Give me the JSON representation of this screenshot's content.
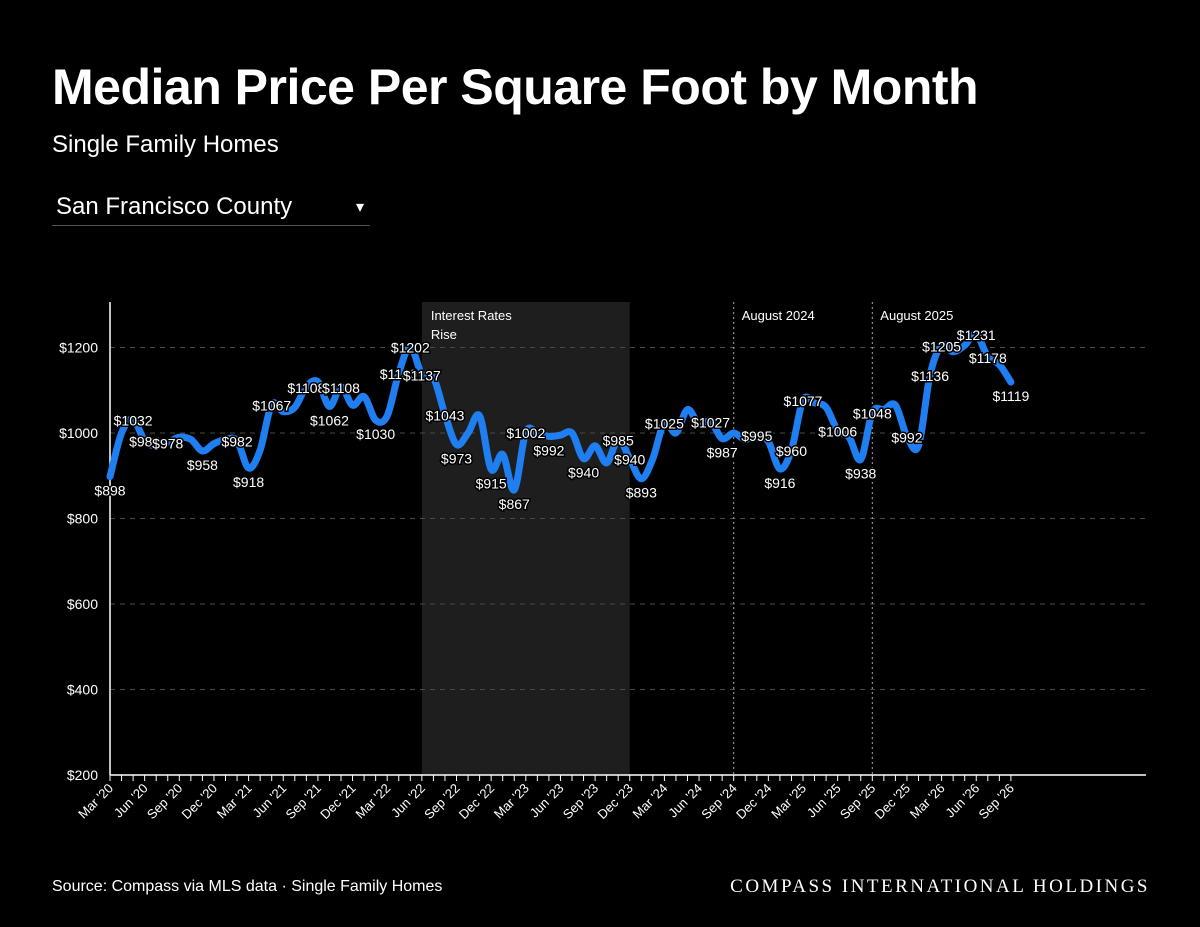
{
  "header": {
    "title": "Median Price Per Square Foot by Month",
    "subtitle": "Single Family Homes"
  },
  "filter": {
    "selected": "San Francisco County",
    "caret_icon": "caret-down-icon"
  },
  "footer": {
    "source": "Source: Compass via MLS data · Single Family Homes",
    "brand": "COMPASS INTERNATIONAL HOLDINGS"
  },
  "colors": {
    "background": "#000000",
    "line": "#1f7ef0",
    "shade": "#1e1e1e",
    "text": "#ffffff"
  },
  "chart_data": {
    "type": "line",
    "title": "Median Price Per Square Foot by Month",
    "ylim": [
      200,
      1300
    ],
    "yticks": [
      200,
      400,
      600,
      800,
      1000,
      1200
    ],
    "ytick_labels": [
      "$200",
      "$400",
      "$600",
      "$800",
      "$1000",
      "$1200"
    ],
    "grid": true,
    "xticks": [
      {
        "label": "Mar '20",
        "date": "2020-03"
      },
      {
        "label": "Jun '20",
        "date": "2020-06"
      },
      {
        "label": "Sep '20",
        "date": "2020-09"
      },
      {
        "label": "Dec '20",
        "date": "2020-12"
      },
      {
        "label": "Mar '21",
        "date": "2021-03"
      },
      {
        "label": "Jun '21",
        "date": "2021-06"
      },
      {
        "label": "Sep '21",
        "date": "2021-09"
      },
      {
        "label": "Dec '21",
        "date": "2021-12"
      },
      {
        "label": "Mar '22",
        "date": "2022-03"
      },
      {
        "label": "Jun '22",
        "date": "2022-06"
      },
      {
        "label": "Sep '22",
        "date": "2022-09"
      },
      {
        "label": "Dec '22",
        "date": "2022-12"
      },
      {
        "label": "Mar '23",
        "date": "2023-03"
      },
      {
        "label": "Jun '23",
        "date": "2023-06"
      },
      {
        "label": "Sep '23",
        "date": "2023-09"
      },
      {
        "label": "Dec '23",
        "date": "2023-12"
      },
      {
        "label": "Mar '24",
        "date": "2024-03"
      },
      {
        "label": "Jun '24",
        "date": "2024-06"
      },
      {
        "label": "Sep '24",
        "date": "2024-09"
      },
      {
        "label": "Dec '24",
        "date": "2024-12"
      },
      {
        "label": "Mar '25",
        "date": "2025-03"
      },
      {
        "label": "Jun '25",
        "date": "2025-06"
      },
      {
        "label": "Sep '25",
        "date": "2025-09"
      },
      {
        "label": "Dec '25",
        "date": "2025-12"
      },
      {
        "label": "Mar '26",
        "date": "2026-03"
      },
      {
        "label": "Jun '26",
        "date": "2026-06"
      },
      {
        "label": "Sep '26",
        "date": "2026-09"
      }
    ],
    "series": [
      {
        "x": [
          "2020-03",
          "2020-04",
          "2020-05",
          "2020-06",
          "2020-07",
          "2020-08",
          "2020-09",
          "2020-10",
          "2020-11",
          "2020-12",
          "2021-01",
          "2021-02",
          "2021-03",
          "2021-04",
          "2021-05",
          "2021-06",
          "2021-07",
          "2021-08",
          "2021-09",
          "2021-10",
          "2021-11",
          "2021-12",
          "2022-01",
          "2022-02",
          "2022-03",
          "2022-04",
          "2022-05",
          "2022-06",
          "2022-07",
          "2022-08",
          "2022-09",
          "2022-10",
          "2022-11",
          "2022-12",
          "2023-01",
          "2023-02",
          "2023-03",
          "2023-04",
          "2023-05",
          "2023-06",
          "2023-07",
          "2023-08",
          "2023-09",
          "2023-10",
          "2023-11",
          "2023-12",
          "2024-01",
          "2024-02",
          "2024-03",
          "2024-04",
          "2024-05",
          "2024-06",
          "2024-07",
          "2024-08",
          "2024-09",
          "2024-10",
          "2024-11",
          "2024-12",
          "2025-01",
          "2025-02",
          "2025-03",
          "2025-04",
          "2025-05",
          "2025-06",
          "2025-07",
          "2025-08",
          "2025-09",
          "2025-10",
          "2025-11",
          "2025-12",
          "2026-01",
          "2026-02",
          "2026-03",
          "2026-04",
          "2026-05",
          "2026-06",
          "2026-07",
          "2026-08",
          "2026-09"
        ],
        "y": [
          898,
          1000,
          1032,
          982,
          970,
          978,
          990,
          985,
          958,
          975,
          985,
          982,
          918,
          960,
          1067,
          1050,
          1060,
          1108,
          1120,
          1062,
          1108,
          1065,
          1085,
          1030,
          1040,
          1140,
          1202,
          1137,
          1130,
          1043,
          973,
          1000,
          1040,
          915,
          950,
          867,
          1002,
          1000,
          992,
          995,
          1000,
          940,
          970,
          930,
          985,
          940,
          893,
          940,
          1025,
          1000,
          1055,
          1020,
          1027,
          987,
          1000,
          985,
          995,
          980,
          916,
          960,
          1077,
          1070,
          1060,
          1006,
          990,
          938,
          1048,
          1055,
          1065,
          992,
          970,
          1136,
          1205,
          1190,
          1205,
          1231,
          1178,
          1160,
          1119
        ]
      }
    ],
    "data_labels": [
      {
        "date": "2020-03",
        "text": "$898"
      },
      {
        "date": "2020-05",
        "text": "$1032"
      },
      {
        "date": "2020-06",
        "text": "$982"
      },
      {
        "date": "2020-08",
        "text": "$978"
      },
      {
        "date": "2020-11",
        "text": "$958"
      },
      {
        "date": "2021-02",
        "text": "$982"
      },
      {
        "date": "2021-03",
        "text": "$918"
      },
      {
        "date": "2021-05",
        "text": "$1067"
      },
      {
        "date": "2021-08",
        "text": "$1108"
      },
      {
        "date": "2021-10",
        "text": "$1062"
      },
      {
        "date": "2021-11",
        "text": "$1108"
      },
      {
        "date": "2022-02",
        "text": "$1030"
      },
      {
        "date": "2022-04",
        "text": "$1140"
      },
      {
        "date": "2022-05",
        "text": "$1202"
      },
      {
        "date": "2022-06",
        "text": "$1137"
      },
      {
        "date": "2022-08",
        "text": "$1043"
      },
      {
        "date": "2022-09",
        "text": "$973"
      },
      {
        "date": "2022-12",
        "text": "$915"
      },
      {
        "date": "2023-02",
        "text": "$867"
      },
      {
        "date": "2023-03",
        "text": "$1002"
      },
      {
        "date": "2023-05",
        "text": "$992"
      },
      {
        "date": "2023-08",
        "text": "$940"
      },
      {
        "date": "2023-11",
        "text": "$985"
      },
      {
        "date": "2023-12",
        "text": "$940"
      },
      {
        "date": "2024-01",
        "text": "$893"
      },
      {
        "date": "2024-03",
        "text": "$1025"
      },
      {
        "date": "2024-07",
        "text": "$1027"
      },
      {
        "date": "2024-08",
        "text": "$987"
      },
      {
        "date": "2024-11",
        "text": "$995"
      },
      {
        "date": "2025-01",
        "text": "$916"
      },
      {
        "date": "2025-02",
        "text": "$960"
      },
      {
        "date": "2025-03",
        "text": "$1077"
      },
      {
        "date": "2025-06",
        "text": "$1006"
      },
      {
        "date": "2025-08",
        "text": "$938"
      },
      {
        "date": "2025-09",
        "text": "$1048"
      },
      {
        "date": "2025-12",
        "text": "$992"
      },
      {
        "date": "2026-02",
        "text": "$1136"
      },
      {
        "date": "2026-03",
        "text": "$1205"
      },
      {
        "date": "2026-06",
        "text": "$1231"
      },
      {
        "date": "2026-07",
        "text": "$1178"
      },
      {
        "date": "2026-09",
        "text": "$1119"
      }
    ],
    "annotations": {
      "shaded_region": {
        "start": "2022-06",
        "end": "2023-12",
        "label_line1": "Interest Rates",
        "label_line2": "Rise"
      },
      "markers": [
        {
          "date": "2024-09",
          "label": "August 2024"
        },
        {
          "date": "2025-09",
          "label": "August 2025"
        }
      ]
    }
  }
}
